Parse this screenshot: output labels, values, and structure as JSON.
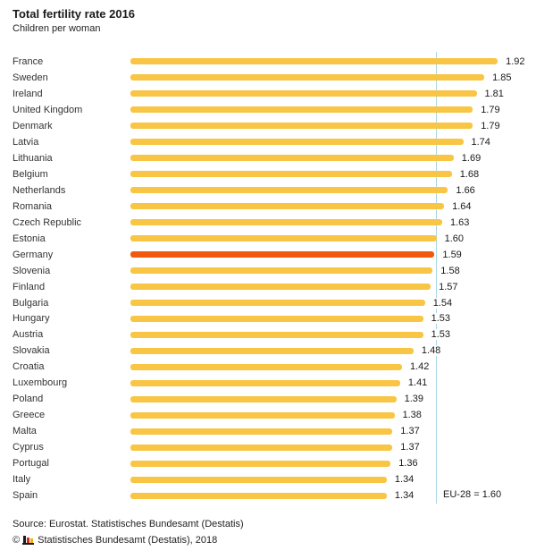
{
  "header": {
    "title": "Total fertility rate 2016",
    "subtitle": "Children per woman"
  },
  "chart_data": {
    "type": "bar",
    "orientation": "horizontal",
    "title": "Total fertility rate 2016",
    "subtitle": "Children per woman",
    "xlabel": "",
    "ylabel": "",
    "xlim": [
      0,
      2.12
    ],
    "grid": false,
    "categories": [
      "France",
      "Sweden",
      "Ireland",
      "United Kingdom",
      "Denmark",
      "Latvia",
      "Lithuania",
      "Belgium",
      "Netherlands",
      "Romania",
      "Czech Republic",
      "Estonia",
      "Germany",
      "Slovenia",
      "Finland",
      "Bulgaria",
      "Hungary",
      "Austria",
      "Slovakia",
      "Croatia",
      "Luxembourg",
      "Poland",
      "Greece",
      "Malta",
      "Cyprus",
      "Portugal",
      "Italy",
      "Spain"
    ],
    "values": [
      1.92,
      1.85,
      1.81,
      1.79,
      1.79,
      1.74,
      1.69,
      1.68,
      1.66,
      1.64,
      1.63,
      1.6,
      1.59,
      1.58,
      1.57,
      1.54,
      1.53,
      1.53,
      1.48,
      1.42,
      1.41,
      1.39,
      1.38,
      1.37,
      1.37,
      1.36,
      1.34,
      1.34
    ],
    "value_label_decimals": 2,
    "highlight_category": "Germany",
    "reference_line": {
      "value": 1.6,
      "label": "EU-28 = 1.60"
    },
    "colors": {
      "bar": "#F8C544",
      "highlight_bar": "#F1590F",
      "reference_line": "#A8D6E6"
    }
  },
  "footer": {
    "source": "Source: Eurostat. Statistisches Bundesamt (Destatis)",
    "copyright_symbol": "©",
    "copyright_text": "Statistisches Bundesamt (Destatis), 2018"
  },
  "icons": {
    "destatis_logo": {
      "name": "destatis-bar-chart-logo",
      "bar_colors": [
        "#1a1a1a",
        "#cc2a2a",
        "#f0b400"
      ]
    }
  }
}
